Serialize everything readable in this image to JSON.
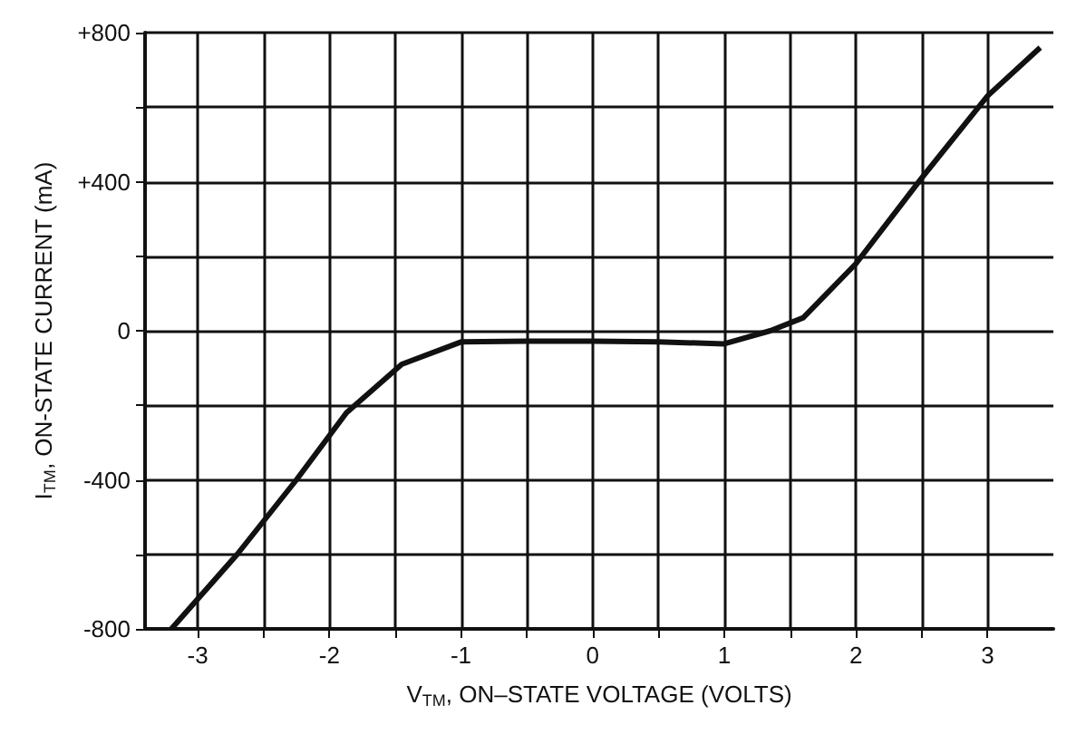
{
  "chart_data": {
    "type": "line",
    "xlabel": "V$_{TM}$, ON–STATE VOLTAGE (VOLTS)",
    "ylabel": "I$_{TM}$, ON-STATE CURRENT (mA)",
    "x": [
      -3.2,
      -2.7,
      -2.25,
      -1.87,
      -1.45,
      -1.0,
      -0.5,
      0,
      0.5,
      1.0,
      1.35,
      1.6,
      2.0,
      2.5,
      3.0,
      3.4
    ],
    "series": [
      {
        "color": "#111111",
        "values": [
          -800,
          -600,
          -400,
          -220,
          -90,
          -30,
          -28,
          -28,
          -30,
          -35,
          0,
          35,
          180,
          410,
          630,
          760
        ]
      }
    ],
    "xlim": [
      -3.4,
      3.5
    ],
    "xticks": [
      -3,
      {
        "value": -2.5,
        "label": null
      },
      -2,
      {
        "value": -1.5,
        "label": null
      },
      -1,
      {
        "value": -0.5,
        "label": null
      },
      0,
      {
        "value": 0.5,
        "label": null
      },
      1,
      {
        "value": 1.5,
        "label": null
      },
      2,
      {
        "value": 2.5,
        "label": null
      },
      3
    ],
    "ylim": [
      -800,
      800
    ],
    "yticks": [
      -800,
      {
        "value": -600,
        "label": null
      },
      -400,
      {
        "value": -200,
        "label": null
      },
      0,
      {
        "value": 200,
        "label": null
      },
      {
        "value": 400,
        "label": "+400"
      },
      {
        "value": 600,
        "label": null
      },
      {
        "value": 800,
        "label": "+800"
      }
    ],
    "grid": true,
    "marker": "none",
    "line_style": "solid"
  }
}
